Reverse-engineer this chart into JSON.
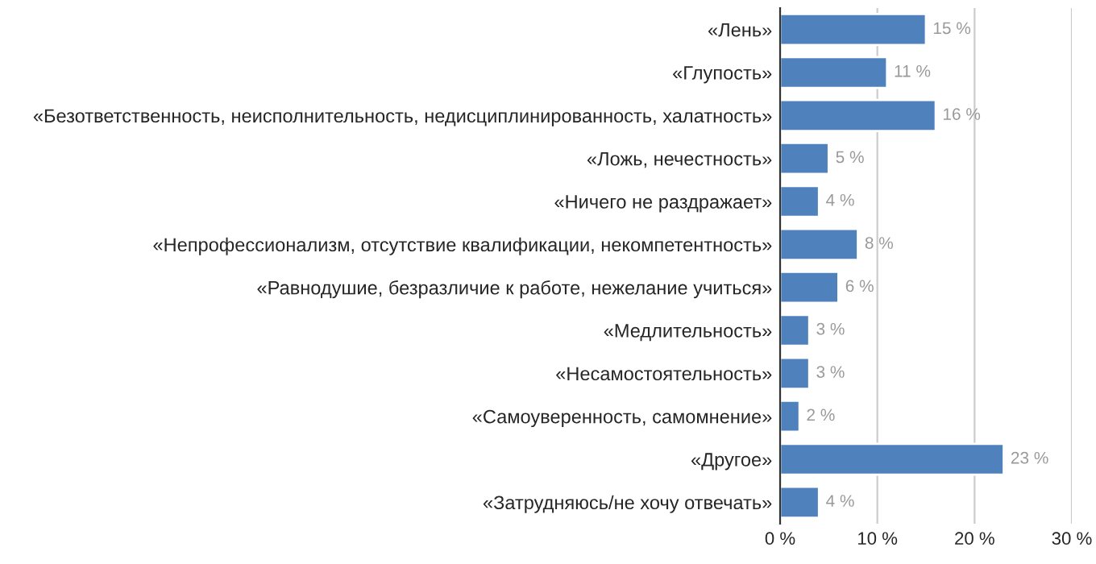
{
  "chart_data": {
    "type": "bar",
    "orientation": "horizontal",
    "categories": [
      "«Лень»",
      "«Глупость»",
      "«Безответственность, неисполнительность, недисциплинированность, халатность»",
      "«Ложь, нечестность»",
      "«Ничего не раздражает»",
      "«Непрофессионализм, отсутствие квалификации, некомпетентность»",
      "«Равнодушие, безразличие к работе, нежелание учиться»",
      "«Медлительность»",
      "«Несамостоятельность»",
      "«Самоуверенность, самомнение»",
      "«Другое»",
      "«Затрудняюсь/не хочу отвечать»"
    ],
    "values": [
      15,
      11,
      16,
      5,
      4,
      8,
      6,
      3,
      3,
      2,
      23,
      4
    ],
    "value_labels": [
      "15 %",
      "11 %",
      "16 %",
      "5 %",
      "4 %",
      "8 %",
      "6 %",
      "3 %",
      "3 %",
      "2 %",
      "23 %",
      "4 %"
    ],
    "color": "#4f81bd",
    "xlim": [
      0,
      30
    ],
    "xticks": [
      {
        "value": 0,
        "label": "0 %"
      },
      {
        "value": 10,
        "label": "10 %"
      },
      {
        "value": 20,
        "label": "20 %"
      },
      {
        "value": 30,
        "label": "30 %"
      }
    ],
    "grid": "x",
    "legend": false
  }
}
